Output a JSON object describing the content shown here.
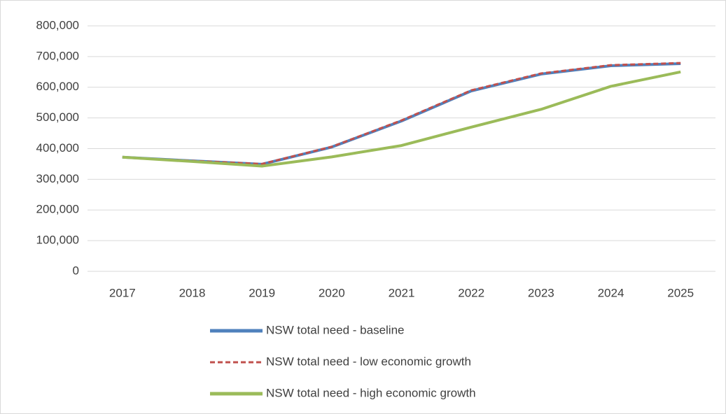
{
  "chart_data": {
    "type": "line",
    "categories": [
      "2017",
      "2018",
      "2019",
      "2020",
      "2021",
      "2022",
      "2023",
      "2024",
      "2025"
    ],
    "series": [
      {
        "name": "NSW total need - baseline",
        "color": "#4f81bd",
        "line_style": "solid",
        "values": [
          372000,
          360000,
          349000,
          405000,
          490000,
          588000,
          643000,
          670000,
          677000
        ]
      },
      {
        "name": "NSW total need - low economic growth",
        "color": "#c0504d",
        "line_style": "dashed",
        "values": [
          372000,
          360000,
          350000,
          406000,
          492000,
          590000,
          645000,
          672000,
          679000
        ]
      },
      {
        "name": "NSW total need - high economic growth",
        "color": "#9bbb59",
        "line_style": "solid",
        "values": [
          372000,
          358000,
          343000,
          373000,
          410000,
          470000,
          528000,
          603000,
          650000
        ]
      }
    ],
    "ylim": [
      0,
      800000
    ],
    "yticks": [
      0,
      {
        "value": 100000,
        "label": "100,000"
      },
      {
        "value": 200000,
        "label": "200,000"
      },
      {
        "value": 300000,
        "label": "300,000"
      },
      {
        "value": 400000,
        "label": "400,000"
      },
      {
        "value": 500000,
        "label": "500,000"
      },
      {
        "value": 600000,
        "label": "600,000"
      },
      {
        "value": 700000,
        "label": "700,000"
      },
      {
        "value": 800000,
        "label": "800,000"
      }
    ],
    "grid": true,
    "legend": "bottom"
  }
}
